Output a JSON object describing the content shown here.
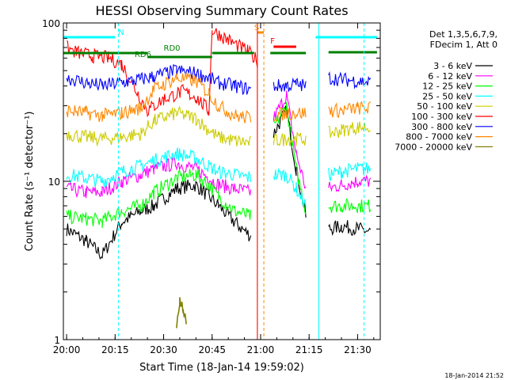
{
  "chart_data": {
    "type": "line",
    "title": "HESSI Observing Summary Count Rates",
    "xlabel": "Start Time (18-Jan-14 19:59:02)",
    "ylabel": "Count Rate (s⁻¹ detector⁻¹)",
    "ylim": [
      1,
      100
    ],
    "yscale": "log",
    "xlim": [
      "19:59",
      "21:37"
    ],
    "x_ticks": [
      "20:00",
      "20:15",
      "20:30",
      "20:45",
      "21:00",
      "21:15",
      "21:30"
    ],
    "y_ticks": [
      "1",
      "10",
      "100"
    ],
    "legend_header": [
      "Det 1,3,5,6,7,9,",
      "FDecim 1, Att 0"
    ],
    "legend_placement": "right",
    "footer": "18-Jan-2014 21:52",
    "series": [
      {
        "name": "3 - 6 keV",
        "color": "#000000",
        "x": [
          "20:00",
          "20:06",
          "20:11",
          "20:17",
          "20:23",
          "20:27",
          "20:34",
          "20:40",
          "20:44",
          "20:47",
          "20:52",
          "20:57",
          "20:59",
          "21:01",
          "21:04",
          "21:08",
          "21:11",
          "21:14",
          "21:17",
          "21:21",
          "21:25",
          "21:30",
          "21:34"
        ],
        "values": [
          5,
          4.2,
          3.4,
          5.5,
          6.5,
          7,
          9,
          9.5,
          8,
          7,
          5.5,
          4.5,
          null,
          null,
          20,
          28,
          12,
          6,
          null,
          5,
          5.2,
          5,
          4.8
        ]
      },
      {
        "name": "6 - 12 keV",
        "color": "#ff00ff",
        "x": [
          "20:00",
          "20:06",
          "20:11",
          "20:17",
          "20:23",
          "20:27",
          "20:34",
          "20:40",
          "20:44",
          "20:47",
          "20:52",
          "20:57",
          "20:59",
          "21:01",
          "21:04",
          "21:08",
          "21:11",
          "21:14",
          "21:17",
          "21:21",
          "21:25",
          "21:30",
          "21:34"
        ],
        "values": [
          9,
          8.5,
          8.5,
          10,
          11,
          12,
          13,
          12,
          10.5,
          9.5,
          9,
          8.5,
          null,
          null,
          25,
          35,
          15,
          9,
          null,
          9,
          9.5,
          10,
          10
        ]
      },
      {
        "name": "12 - 25 keV",
        "color": "#00ff00",
        "x": [
          "20:00",
          "20:06",
          "20:11",
          "20:17",
          "20:23",
          "20:27",
          "20:34",
          "20:40",
          "20:44",
          "20:47",
          "20:52",
          "20:57",
          "20:59",
          "21:01",
          "21:04",
          "21:08",
          "21:11",
          "21:14",
          "21:17",
          "21:21",
          "21:25",
          "21:30",
          "21:34"
        ],
        "values": [
          6,
          5.8,
          5.6,
          6.5,
          7,
          8.5,
          10.5,
          11,
          9.5,
          8,
          6.5,
          6,
          null,
          null,
          22,
          30,
          12,
          6.5,
          null,
          7,
          7,
          7,
          7
        ]
      },
      {
        "name": "25 - 50 keV",
        "color": "#00ffff",
        "x": [
          "20:00",
          "20:06",
          "20:11",
          "20:17",
          "20:23",
          "20:27",
          "20:34",
          "20:40",
          "20:44",
          "20:47",
          "20:52",
          "20:57",
          "20:59",
          "21:01",
          "21:04",
          "21:08",
          "21:11",
          "21:14",
          "21:17",
          "21:21",
          "21:25",
          "21:30",
          "21:34"
        ],
        "values": [
          11,
          10.5,
          10,
          11.5,
          12.5,
          13.5,
          15,
          14,
          12.5,
          11.5,
          11,
          10.5,
          null,
          null,
          11,
          11,
          9,
          7,
          null,
          11,
          11.5,
          12,
          12
        ]
      },
      {
        "name": "50 - 100 keV",
        "color": "#cccc00",
        "x": [
          "20:00",
          "20:06",
          "20:11",
          "20:17",
          "20:23",
          "20:27",
          "20:34",
          "20:40",
          "20:44",
          "20:47",
          "20:52",
          "20:57",
          "20:59",
          "21:01",
          "21:04",
          "21:08",
          "21:11",
          "21:14",
          "21:17",
          "21:21",
          "21:25",
          "21:30",
          "21:34"
        ],
        "values": [
          20,
          19,
          18.5,
          19,
          20,
          24,
          27,
          25,
          21,
          19,
          18,
          17.5,
          null,
          null,
          18,
          18.5,
          18.5,
          18.5,
          null,
          20,
          21,
          22,
          22
        ]
      },
      {
        "name": "100 - 300 keV",
        "color": "#ff0000",
        "x": [
          "20:00",
          "20:03",
          "20:08",
          "20:13",
          "20:17",
          "20:25",
          "20:30",
          "20:36",
          "20:40",
          "20:44",
          "20:45",
          "20:50",
          "20:56",
          "20:59"
        ],
        "values": [
          70,
          65,
          62,
          60,
          55,
          28,
          33,
          37,
          34,
          28,
          90,
          78,
          66,
          58
        ]
      },
      {
        "name": "300 - 800 keV",
        "color": "#0000ff",
        "x": [
          "20:00",
          "20:06",
          "20:11",
          "20:17",
          "20:23",
          "20:27",
          "20:34",
          "20:40",
          "20:44",
          "20:47",
          "20:52",
          "20:57",
          "20:59",
          "21:01",
          "21:04",
          "21:08",
          "21:11",
          "21:14",
          "21:17",
          "21:21",
          "21:25",
          "21:30",
          "21:34"
        ],
        "values": [
          45,
          42,
          40,
          42,
          44,
          46,
          50,
          48,
          45,
          42,
          40,
          38,
          null,
          null,
          40,
          40,
          41,
          40,
          null,
          45,
          44,
          43,
          42
        ]
      },
      {
        "name": "800 - 7000 keV",
        "color": "#ff8800",
        "x": [
          "20:00",
          "20:06",
          "20:11",
          "20:17",
          "20:23",
          "20:27",
          "20:34",
          "20:40",
          "20:44",
          "20:47",
          "20:52",
          "20:57",
          "20:59",
          "21:01",
          "21:04",
          "21:08",
          "21:11",
          "21:14",
          "21:17",
          "21:21",
          "21:25",
          "21:30",
          "21:34"
        ],
        "values": [
          28,
          27,
          26,
          27,
          29,
          38,
          45,
          43,
          36,
          30,
          26,
          25,
          null,
          null,
          26,
          27,
          27,
          27,
          null,
          28,
          28,
          29,
          29
        ]
      },
      {
        "name": "7000 - 20000 keV",
        "color": "#808000",
        "x": [
          "20:34",
          "20:35",
          "20:36",
          "20:37"
        ],
        "values": [
          1.2,
          1.8,
          1.6,
          1.3
        ]
      }
    ],
    "state_labels": [
      {
        "text": "N",
        "color": "#00ffff",
        "x": "20:15"
      },
      {
        "text": "RD6",
        "color": "#008000",
        "x": "20:23"
      },
      {
        "text": "RD0",
        "color": "#008000",
        "x": "20:30"
      },
      {
        "text": "S",
        "color": "#ff8800",
        "x": "20:58"
      },
      {
        "text": "F",
        "color": "#ff0000",
        "x": "21:03"
      }
    ]
  }
}
